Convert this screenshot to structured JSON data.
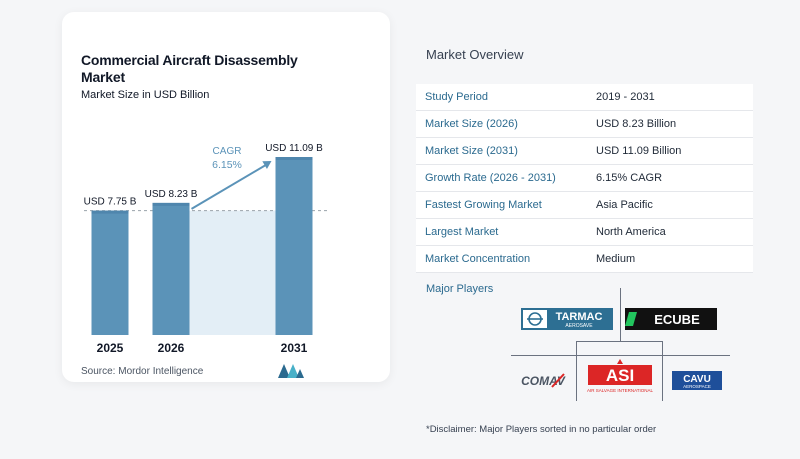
{
  "left_panel": {
    "title": "Commercial Aircraft Disassembly Market",
    "subtitle": "Market Size in USD Billion",
    "source": "Source:  Mordor Intelligence",
    "cagr_label": "CAGR",
    "cagr_value": "6.15%"
  },
  "chart_data": {
    "type": "bar",
    "categories": [
      "2025",
      "2026",
      "2031"
    ],
    "values": [
      7.75,
      8.23,
      11.09
    ],
    "data_labels": [
      "USD 7.75 B",
      "USD 8.23 B",
      "USD 11.09 B"
    ],
    "ylim": [
      0,
      11.09
    ],
    "grid": false,
    "title": "Commercial Aircraft Disassembly Market",
    "subtitle": "Market Size in USD Billion",
    "colors": {
      "bar": "#5b93b8",
      "bar_top": "#4f86ad",
      "shade": "#e3eef6",
      "dash": "#9aa3ab",
      "arrow": "#5b93b8"
    }
  },
  "overview": {
    "title": "Market Overview",
    "rows": [
      {
        "key": "Study Period",
        "value": "2019 - 2031"
      },
      {
        "key": "Market Size (2026)",
        "value": "USD 8.23 Billion"
      },
      {
        "key": "Market Size (2031)",
        "value": "USD 11.09 Billion"
      },
      {
        "key": "Growth Rate (2026 - 2031)",
        "value": "6.15% CAGR"
      },
      {
        "key": "Fastest Growing Market",
        "value": "Asia Pacific"
      },
      {
        "key": "Largest Market",
        "value": "North America"
      },
      {
        "key": "Market Concentration",
        "value": "Medium"
      }
    ],
    "players_label": "Major Players",
    "players": {
      "tarmac": {
        "name": "TARMAC",
        "sub": "AEROSAVE"
      },
      "ecube": {
        "name": "ECUBE"
      },
      "comav": {
        "name": "COMAV"
      },
      "asi": {
        "name": "ASI",
        "sub": "AIR SALVAGE INTERNATIONAL"
      },
      "cavu": {
        "name": "CAVU",
        "sub": "AEROSPACE"
      }
    },
    "disclaimer": "*Disclaimer: Major Players sorted in no particular order"
  }
}
